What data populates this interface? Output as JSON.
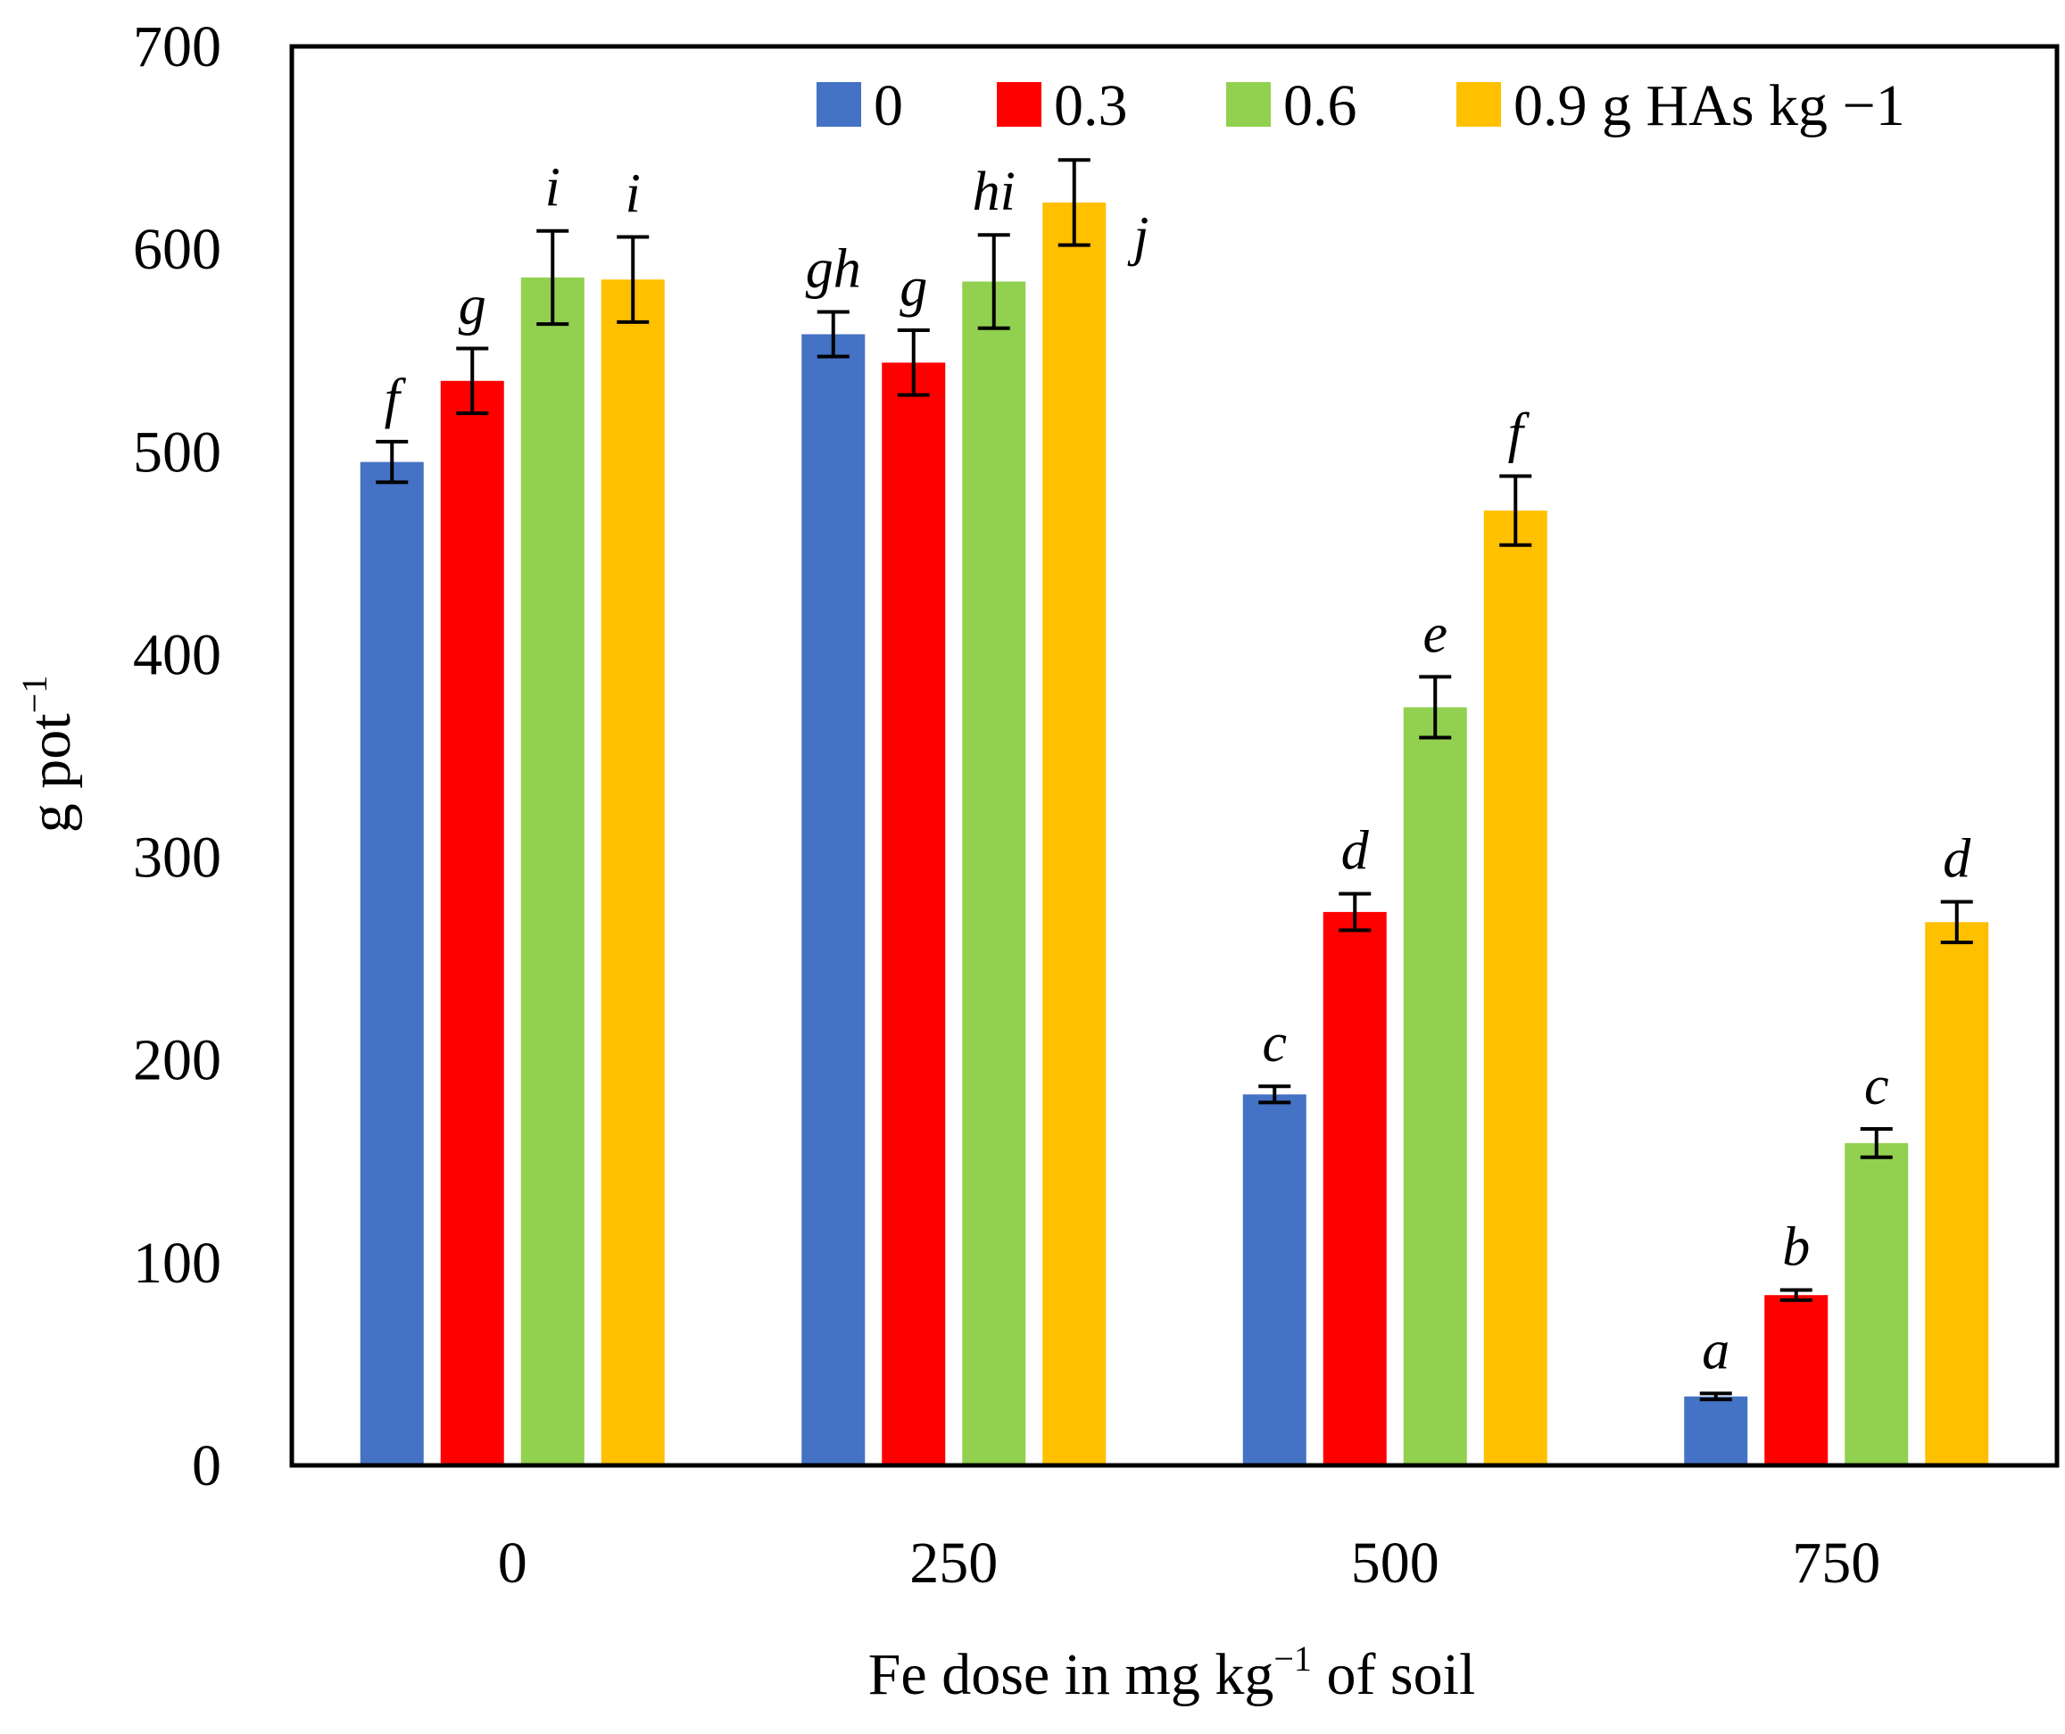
{
  "chart_data": {
    "type": "bar",
    "xlabel": {
      "text": "Fe dose in mg kg",
      "superscript": "−1",
      "suffix": " of soil"
    },
    "ylabel": {
      "text": "g  pot",
      "superscript": "−1"
    },
    "ylim": [
      0,
      700
    ],
    "yticks": [
      0,
      100,
      200,
      300,
      400,
      500,
      600,
      700
    ],
    "categories": [
      "0",
      "250",
      "500",
      "750"
    ],
    "legend_position": "top-right",
    "grid": false,
    "series": [
      {
        "name": "0",
        "color": "#4472C4",
        "values": [
          495,
          558,
          183,
          34
        ],
        "errors": [
          10,
          11,
          4,
          1.5
        ],
        "letters": [
          "f",
          "gh",
          "c",
          "a"
        ]
      },
      {
        "name": "0.3",
        "color": "#FF0000",
        "values": [
          535,
          544,
          273,
          84
        ],
        "errors": [
          16,
          16,
          9,
          2.5
        ],
        "letters": [
          "g",
          "g",
          "d",
          "b"
        ]
      },
      {
        "name": "0.6",
        "color": "#92D050",
        "values": [
          586,
          584,
          374,
          159
        ],
        "errors": [
          23,
          23,
          15,
          7
        ],
        "letters": [
          "i",
          "hi",
          "e",
          "c"
        ]
      },
      {
        "name": "0.9 g HAs kg −1",
        "color": "#FFC000",
        "values": [
          585,
          623,
          471,
          268
        ],
        "errors": [
          21,
          21,
          17,
          10
        ],
        "letters": [
          "i",
          "j",
          "f",
          "d"
        ]
      }
    ]
  }
}
